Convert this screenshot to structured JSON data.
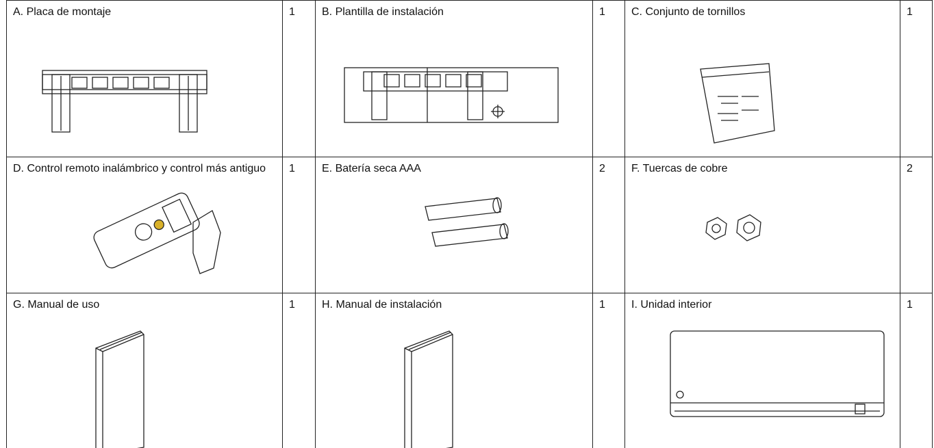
{
  "table": {
    "rows": [
      [
        {
          "item": "A. Placa de montaje",
          "qty": "1"
        },
        {
          "item": "B. Plantilla de instalación",
          "qty": "1"
        },
        {
          "item": "C. Conjunto de tornillos",
          "qty": "1"
        }
      ],
      [
        {
          "item": "D. Control remoto inalámbrico y control más antiguo",
          "qty": "1"
        },
        {
          "item": "E. Batería seca AAA",
          "qty": "2"
        },
        {
          "item": "F. Tuercas de cobre",
          "qty": "2"
        }
      ],
      [
        {
          "item": "G. Manual de uso",
          "qty": "1"
        },
        {
          "item": "H. Manual de instalación",
          "qty": "1"
        },
        {
          "item": "I. Unidad interior",
          "qty": "1"
        }
      ]
    ]
  }
}
